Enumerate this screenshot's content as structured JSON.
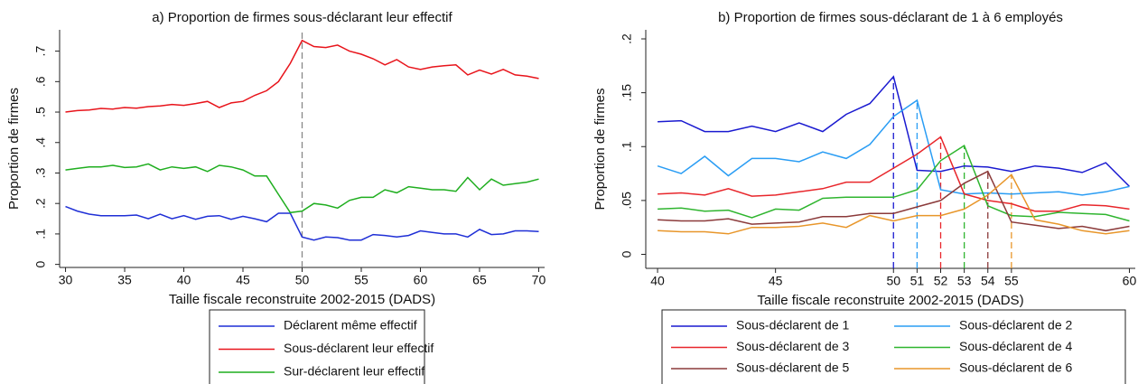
{
  "chart_data": [
    {
      "type": "line",
      "title": "a) Proportion de firmes sous-déclarant leur effectif",
      "xlabel": "Taille fiscale reconstruite 2002-2015 (DADS)",
      "ylabel": "Proportion de firmes",
      "x": [
        30,
        31,
        32,
        33,
        34,
        35,
        36,
        37,
        38,
        39,
        40,
        41,
        42,
        43,
        44,
        45,
        46,
        47,
        48,
        49,
        50,
        51,
        52,
        53,
        54,
        55,
        56,
        57,
        58,
        59,
        60,
        61,
        62,
        63,
        64,
        65,
        66,
        67,
        68,
        69,
        70
      ],
      "xlim": [
        29.5,
        70.5
      ],
      "xticks": [
        30,
        35,
        40,
        45,
        50,
        55,
        60,
        65,
        70
      ],
      "ylim": [
        -0.01,
        0.77
      ],
      "yticks": [
        0,
        {
          "value": 0.1,
          "label": ".1"
        },
        {
          "value": 0.2,
          "label": ".2"
        },
        {
          "value": 0.3,
          "label": ".3"
        },
        {
          "value": 0.4,
          "label": ".4"
        },
        {
          "value": 0.5,
          "label": ".5"
        },
        {
          "value": 0.6,
          "label": ".6"
        },
        {
          "value": 0.7,
          "label": ".7"
        }
      ],
      "reference_lines": [
        {
          "x": 50,
          "color": "#888888"
        }
      ],
      "legend_columns": 1,
      "series": [
        {
          "name": "Déclarent même effectif",
          "color": "#1f2fd6",
          "values": [
            0.19,
            0.175,
            0.165,
            0.16,
            0.16,
            0.16,
            0.162,
            0.15,
            0.165,
            0.15,
            0.16,
            0.148,
            0.158,
            0.16,
            0.148,
            0.158,
            0.15,
            0.14,
            0.168,
            0.168,
            0.09,
            0.08,
            0.09,
            0.088,
            0.08,
            0.08,
            0.098,
            0.095,
            0.09,
            0.095,
            0.11,
            0.105,
            0.1,
            0.1,
            0.09,
            0.115,
            0.098,
            0.1,
            0.11,
            0.11,
            0.108
          ]
        },
        {
          "name": "Sous-déclarent leur effectif",
          "color": "#e8141b",
          "values": [
            0.5,
            0.505,
            0.507,
            0.512,
            0.51,
            0.515,
            0.513,
            0.518,
            0.52,
            0.525,
            0.522,
            0.528,
            0.535,
            0.515,
            0.53,
            0.535,
            0.555,
            0.57,
            0.6,
            0.66,
            0.735,
            0.715,
            0.712,
            0.72,
            0.7,
            0.69,
            0.675,
            0.655,
            0.672,
            0.648,
            0.64,
            0.648,
            0.652,
            0.655,
            0.622,
            0.638,
            0.625,
            0.64,
            0.622,
            0.618,
            0.61
          ]
        },
        {
          "name": "Sur-déclarent leur effectif",
          "color": "#1fae1f",
          "values": [
            0.31,
            0.315,
            0.32,
            0.32,
            0.325,
            0.318,
            0.32,
            0.33,
            0.31,
            0.32,
            0.315,
            0.32,
            0.305,
            0.325,
            0.32,
            0.31,
            0.29,
            0.29,
            0.23,
            0.17,
            0.175,
            0.2,
            0.195,
            0.185,
            0.21,
            0.22,
            0.22,
            0.245,
            0.235,
            0.255,
            0.25,
            0.245,
            0.245,
            0.24,
            0.285,
            0.245,
            0.28,
            0.26,
            0.265,
            0.27,
            0.28
          ]
        }
      ]
    },
    {
      "type": "line",
      "title": "b) Proportion de firmes sous-déclarant de 1 à 6 employés",
      "xlabel": "Taille fiscale reconstruite 2002-2015 (DADS)",
      "ylabel": "Proportion de firmes",
      "x": [
        40,
        41,
        42,
        43,
        44,
        45,
        46,
        47,
        48,
        49,
        50,
        51,
        52,
        53,
        54,
        55,
        56,
        57,
        58,
        59,
        60
      ],
      "xlim": [
        39.5,
        60.25
      ],
      "xticks": [
        40,
        45,
        50,
        51,
        52,
        53,
        54,
        55,
        60
      ],
      "ylim": [
        -0.013,
        0.2084
      ],
      "yticks": [
        0,
        {
          "value": 0.05,
          "label": ".05"
        },
        {
          "value": 0.1,
          "label": ".1"
        },
        {
          "value": 0.15,
          "label": ".15"
        },
        {
          "value": 0.2,
          "label": ".2"
        }
      ],
      "reference_lines": [
        {
          "x": 50,
          "series": 0
        },
        {
          "x": 51,
          "series": 1
        },
        {
          "x": 52,
          "series": 2
        },
        {
          "x": 53,
          "series": 3
        },
        {
          "x": 54,
          "series": 4
        },
        {
          "x": 55,
          "series": 5
        }
      ],
      "legend_columns": 2,
      "series": [
        {
          "name": "Sous-déclarent de 1",
          "color": "#1a1ad0",
          "values": [
            0.123,
            0.124,
            0.114,
            0.114,
            0.119,
            0.114,
            0.122,
            0.114,
            0.13,
            0.14,
            0.165,
            0.078,
            0.077,
            0.082,
            0.081,
            0.077,
            0.082,
            0.08,
            0.076,
            0.085,
            0.063
          ]
        },
        {
          "name": "Sous-déclarent de 2",
          "color": "#2a9df4",
          "values": [
            0.082,
            0.075,
            0.091,
            0.073,
            0.089,
            0.089,
            0.086,
            0.095,
            0.089,
            0.102,
            0.128,
            0.143,
            0.06,
            0.056,
            0.057,
            0.056,
            0.057,
            0.058,
            0.055,
            0.058,
            0.063
          ]
        },
        {
          "name": "Sous-déclarent de 3",
          "color": "#e8262b",
          "values": [
            0.056,
            0.057,
            0.055,
            0.061,
            0.054,
            0.055,
            0.058,
            0.061,
            0.067,
            0.067,
            0.08,
            0.093,
            0.109,
            0.056,
            0.05,
            0.047,
            0.04,
            0.04,
            0.046,
            0.045,
            0.042
          ]
        },
        {
          "name": "Sous-déclarent de 4",
          "color": "#2fb52f",
          "values": [
            0.042,
            0.043,
            0.04,
            0.041,
            0.034,
            0.042,
            0.041,
            0.052,
            0.053,
            0.053,
            0.053,
            0.06,
            0.087,
            0.101,
            0.045,
            0.036,
            0.035,
            0.039,
            0.038,
            0.037,
            0.031
          ]
        },
        {
          "name": "Sous-déclarent de 5",
          "color": "#8b3a3a",
          "values": [
            0.032,
            0.031,
            0.031,
            0.033,
            0.028,
            0.029,
            0.03,
            0.035,
            0.035,
            0.038,
            0.038,
            0.044,
            0.05,
            0.066,
            0.077,
            0.03,
            0.027,
            0.024,
            0.026,
            0.022,
            0.026
          ]
        },
        {
          "name": "Sous-déclarent de 6",
          "color": "#e8962a",
          "values": [
            0.022,
            0.021,
            0.021,
            0.019,
            0.025,
            0.025,
            0.026,
            0.029,
            0.025,
            0.036,
            0.031,
            0.036,
            0.036,
            0.042,
            0.055,
            0.074,
            0.032,
            0.028,
            0.022,
            0.019,
            0.022
          ]
        }
      ]
    }
  ]
}
